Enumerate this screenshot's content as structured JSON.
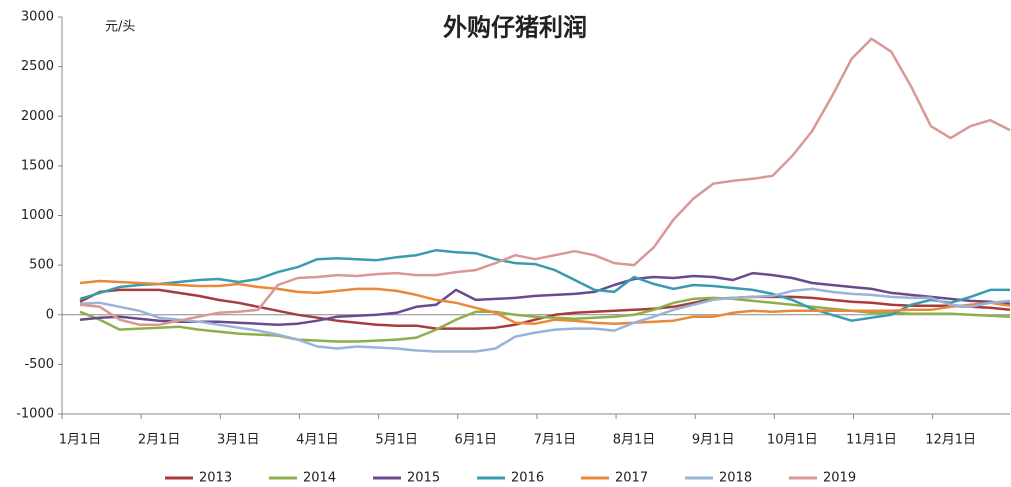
{
  "chart_data": {
    "type": "line",
    "title": "外购仔猪利润",
    "y_label": "元/头",
    "categories": [
      "1月1日",
      null,
      null,
      null,
      "2月1日",
      null,
      null,
      null,
      "3月1日",
      null,
      null,
      null,
      "4月1日",
      null,
      null,
      null,
      "5月1日",
      null,
      null,
      null,
      "6月1日",
      null,
      null,
      null,
      "7月1日",
      null,
      null,
      null,
      "8月1日",
      null,
      null,
      null,
      "9月1日",
      null,
      null,
      null,
      "10月1日",
      null,
      null,
      null,
      "11月1日",
      null,
      null,
      null,
      "12月1日",
      null,
      null,
      null
    ],
    "ylim": [
      -1000,
      3000
    ],
    "yticks": [
      -1000,
      -500,
      0,
      500,
      1000,
      1500,
      2000,
      2500,
      3000
    ],
    "series": [
      {
        "name": "2013",
        "color": "#a83c3c",
        "values": [
          130,
          230,
          250,
          250,
          250,
          220,
          190,
          150,
          120,
          80,
          40,
          0,
          -30,
          -60,
          -80,
          -100,
          -110,
          -110,
          -140,
          -140,
          -140,
          -130,
          -100,
          -50,
          0,
          20,
          30,
          40,
          50,
          60,
          80,
          120,
          160,
          170,
          180,
          180,
          180,
          170,
          150,
          130,
          120,
          100,
          90,
          90,
          90,
          80,
          70,
          50
        ]
      },
      {
        "name": "2014",
        "color": "#8db04a",
        "values": [
          30,
          -50,
          -150,
          -140,
          -130,
          -120,
          -150,
          -170,
          -190,
          -200,
          -210,
          -250,
          -260,
          -270,
          -270,
          -260,
          -250,
          -230,
          -150,
          -50,
          30,
          30,
          0,
          -20,
          -30,
          -40,
          -30,
          -20,
          0,
          50,
          120,
          160,
          170,
          160,
          140,
          120,
          100,
          80,
          60,
          40,
          20,
          20,
          10,
          10,
          10,
          0,
          -10,
          -20
        ]
      },
      {
        "name": "2015",
        "color": "#6a4a8e",
        "values": [
          -50,
          -30,
          -20,
          -40,
          -60,
          -70,
          -70,
          -70,
          -80,
          -90,
          -100,
          -90,
          -60,
          -20,
          -10,
          0,
          20,
          80,
          100,
          250,
          150,
          160,
          170,
          190,
          200,
          210,
          230,
          300,
          360,
          380,
          370,
          390,
          380,
          350,
          420,
          400,
          370,
          320,
          300,
          280,
          260,
          220,
          200,
          180,
          160,
          140,
          130,
          110
        ]
      },
      {
        "name": "2016",
        "color": "#3a9bb0",
        "values": [
          160,
          220,
          280,
          300,
          310,
          330,
          350,
          360,
          330,
          360,
          430,
          480,
          560,
          570,
          560,
          550,
          580,
          600,
          650,
          630,
          620,
          560,
          520,
          510,
          450,
          350,
          250,
          230,
          380,
          310,
          260,
          300,
          290,
          270,
          250,
          210,
          150,
          60,
          0,
          -60,
          -30,
          0,
          100,
          150,
          120,
          180,
          250,
          250
        ]
      },
      {
        "name": "2017",
        "color": "#e8893a",
        "values": [
          320,
          340,
          330,
          320,
          310,
          300,
          290,
          290,
          310,
          280,
          260,
          230,
          220,
          240,
          260,
          260,
          240,
          200,
          150,
          120,
          70,
          20,
          -80,
          -90,
          -50,
          -60,
          -80,
          -90,
          -80,
          -70,
          -60,
          -20,
          -20,
          20,
          40,
          30,
          40,
          40,
          40,
          40,
          40,
          40,
          50,
          50,
          80,
          100,
          120,
          90
        ]
      },
      {
        "name": "2018",
        "color": "#9ab3d8",
        "values": [
          110,
          120,
          80,
          40,
          -30,
          -50,
          -70,
          -100,
          -130,
          -160,
          -200,
          -250,
          -320,
          -340,
          -320,
          -330,
          -340,
          -360,
          -370,
          -370,
          -370,
          -340,
          -220,
          -180,
          -150,
          -140,
          -140,
          -160,
          -80,
          -20,
          50,
          100,
          150,
          170,
          180,
          190,
          240,
          260,
          230,
          210,
          200,
          180,
          170,
          170,
          100,
          80,
          120,
          140
        ]
      },
      {
        "name": "2019",
        "color": "#d99795",
        "values": [
          100,
          80,
          -50,
          -100,
          -100,
          -60,
          -20,
          20,
          30,
          50,
          300,
          370,
          380,
          400,
          390,
          410,
          420,
          400,
          400,
          430,
          450,
          520,
          600,
          560,
          600,
          640,
          600,
          520,
          500,
          680,
          960,
          1170,
          1320,
          1350,
          1370,
          1400,
          1600,
          1850,
          2200,
          2580,
          2780,
          2650,
          2300,
          1900,
          1780,
          1900,
          1960,
          1860
        ]
      }
    ]
  }
}
